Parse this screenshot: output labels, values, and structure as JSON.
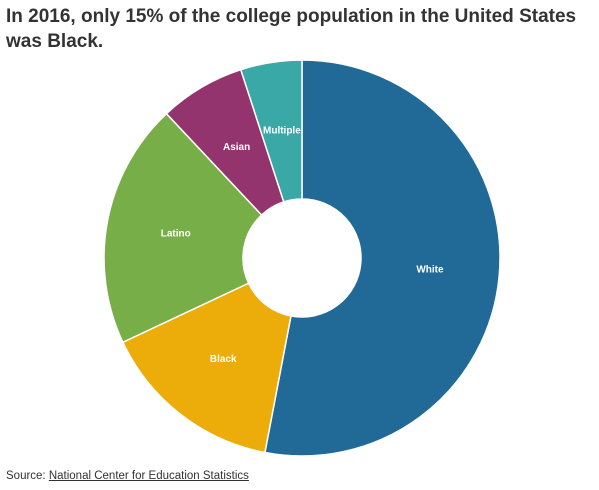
{
  "title": "In 2016, only 15% of the college population in the United States was Black.",
  "source": {
    "prefix": "Source: ",
    "link_text": "National Center for Education Statistics"
  },
  "chart_data": {
    "type": "pie",
    "donut": true,
    "title": "In 2016, only 15% of the college population in the United States was Black.",
    "slices": [
      {
        "label": "White",
        "value": 53,
        "color": "#216a98"
      },
      {
        "label": "Black",
        "value": 15,
        "color": "#ecad0a"
      },
      {
        "label": "Latino",
        "value": 20,
        "color": "#77ae48"
      },
      {
        "label": "Asian",
        "value": 7,
        "color": "#94346e"
      },
      {
        "label": "Multiple",
        "value": 5,
        "color": "#39a8a6"
      }
    ]
  }
}
